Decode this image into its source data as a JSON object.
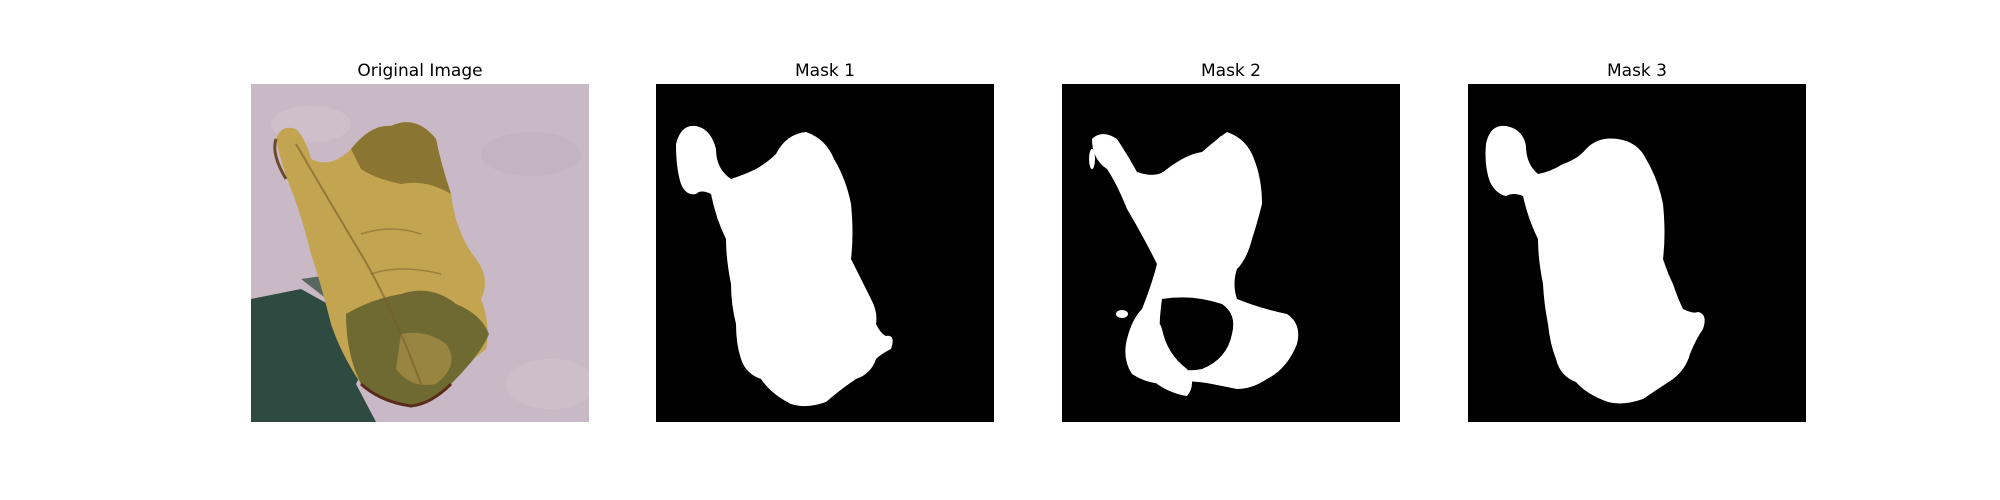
{
  "figure": {
    "panels": [
      {
        "title": "Original Image",
        "kind": "photo",
        "description": "leaf"
      },
      {
        "title": "Mask 1",
        "kind": "mask"
      },
      {
        "title": "Mask 2",
        "kind": "mask"
      },
      {
        "title": "Mask 3",
        "kind": "mask"
      }
    ]
  },
  "colors": {
    "mask_background": "#000000",
    "mask_foreground": "#ffffff",
    "photo_background": "#c7b7c4",
    "leaf_light": "#c3a451",
    "leaf_dark": "#6f6a32",
    "shadow": "#2f4a40"
  }
}
